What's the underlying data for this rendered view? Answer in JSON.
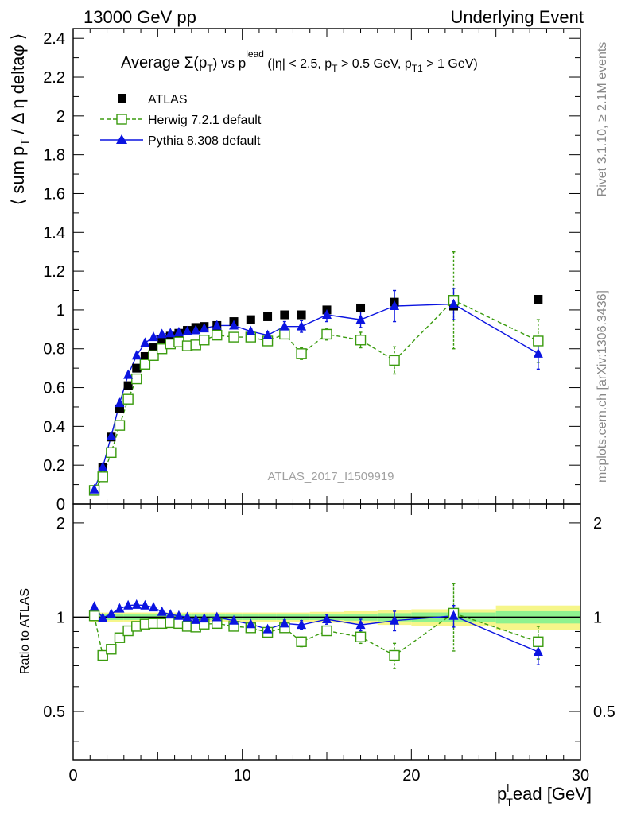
{
  "header": {
    "left": "13000 GeV pp",
    "right": "Underlying Event"
  },
  "side_labels": {
    "rivet": "Rivet 3.1.10, ≥ 2.1M events",
    "mcplots": "mcplots.cern.ch [arXiv:1306.3436]"
  },
  "watermark": "ATLAS_2017_I1509919",
  "chart_data": {
    "type": "scatter",
    "title": {
      "prefix": "Average ",
      "sigma": "Σ(p",
      "sub_T": "T",
      "mid": ") vs p",
      "sup_lead": "lead",
      "rest1": " (|η| < 2.5, p",
      "rest2": " > 0.5 GeV, p",
      "sub_T1": "T1",
      "rest3": " > 1 GeV)"
    },
    "ylabel": {
      "main": "⟨ sum p",
      "sub": "T",
      "rest": " / Δ η deltaφ ⟩"
    },
    "xlabel": {
      "p": "p",
      "sub": "T",
      "sup": "l",
      "rest": "ead [GeV]"
    },
    "ratio_ylabel": "Ratio to ATLAS",
    "xlim": [
      0,
      30
    ],
    "ylim": [
      0,
      2.45
    ],
    "ratio_ylim": [
      0.35,
      2.3
    ],
    "x_ticks": [
      0,
      10,
      20,
      30
    ],
    "y_ticks": [
      0,
      0.2,
      0.4,
      0.6,
      0.8,
      1,
      1.2,
      1.4,
      1.6,
      1.8,
      2,
      2.2,
      2.4
    ],
    "y_tick_labels": [
      "0",
      "0.2",
      "0.4",
      "0.6",
      "0.8",
      "1",
      "1.2",
      "1.4",
      "1.6",
      "1.8",
      "2",
      "2.2",
      "2.4"
    ],
    "ratio_ticks": [
      0.5,
      1,
      2
    ],
    "ratio_tick_labels": [
      "0.5",
      "1",
      "2"
    ],
    "legend_position": "top-left",
    "colors": {
      "atlas": "#000000",
      "herwig": "#3a9b0e",
      "pythia": "#0b14e0",
      "band_inner": "#8ff28f",
      "band_outer": "#f6f68a"
    },
    "series": [
      {
        "name": "ATLAS",
        "style": "data",
        "x": [
          1.25,
          1.75,
          2.25,
          2.75,
          3.25,
          3.75,
          4.25,
          4.75,
          5.25,
          5.75,
          6.25,
          6.75,
          7.25,
          7.75,
          8.5,
          9.5,
          10.5,
          11.5,
          12.5,
          13.5,
          15.0,
          17.0,
          19.0,
          22.5,
          27.5
        ],
        "y": [
          0.07,
          0.19,
          0.345,
          0.49,
          0.61,
          0.7,
          0.76,
          0.805,
          0.845,
          0.865,
          0.88,
          0.895,
          0.91,
          0.915,
          0.92,
          0.94,
          0.95,
          0.965,
          0.975,
          0.975,
          1.0,
          1.01,
          1.04,
          1.02,
          1.055
        ]
      },
      {
        "name": "Herwig 7.2.1 default",
        "style": "dashed-open-square",
        "x": [
          1.25,
          1.75,
          2.25,
          2.75,
          3.25,
          3.75,
          4.25,
          4.75,
          5.25,
          5.75,
          6.25,
          6.75,
          7.25,
          7.75,
          8.5,
          9.5,
          10.5,
          11.5,
          12.5,
          13.5,
          15.0,
          17.0,
          19.0,
          22.5,
          27.5
        ],
        "y": [
          0.07,
          0.14,
          0.265,
          0.405,
          0.54,
          0.645,
          0.72,
          0.765,
          0.8,
          0.825,
          0.835,
          0.815,
          0.82,
          0.845,
          0.87,
          0.86,
          0.86,
          0.84,
          0.875,
          0.775,
          0.875,
          0.845,
          0.74,
          1.05,
          0.84
        ],
        "err": [
          0,
          0,
          0,
          0,
          0,
          0,
          0,
          0,
          0,
          0,
          0,
          0,
          0,
          0,
          0.01,
          0.01,
          0.015,
          0.02,
          0.02,
          0.03,
          0.03,
          0.04,
          0.07,
          0.25,
          0.11
        ]
      },
      {
        "name": "Pythia 8.308 default",
        "style": "solid-triangle",
        "x": [
          1.25,
          1.75,
          2.25,
          2.75,
          3.25,
          3.75,
          4.25,
          4.75,
          5.25,
          5.75,
          6.25,
          6.75,
          7.25,
          7.75,
          8.5,
          9.5,
          10.5,
          11.5,
          12.5,
          13.5,
          15.0,
          17.0,
          19.0,
          22.5,
          27.5
        ],
        "y": [
          0.075,
          0.19,
          0.35,
          0.52,
          0.665,
          0.765,
          0.83,
          0.86,
          0.875,
          0.88,
          0.885,
          0.89,
          0.895,
          0.905,
          0.92,
          0.92,
          0.89,
          0.87,
          0.915,
          0.915,
          0.975,
          0.95,
          1.02,
          1.03,
          0.775
        ],
        "err": [
          0,
          0,
          0,
          0,
          0,
          0,
          0,
          0,
          0,
          0,
          0,
          0,
          0,
          0,
          0.01,
          0.01,
          0.015,
          0.02,
          0.025,
          0.03,
          0.035,
          0.04,
          0.08,
          0.08,
          0.08
        ]
      }
    ],
    "ratio_series": [
      {
        "name": "Herwig 7.2.1 default",
        "x": [
          1.25,
          1.75,
          2.25,
          2.75,
          3.25,
          3.75,
          4.25,
          4.75,
          5.25,
          5.75,
          6.25,
          6.75,
          7.25,
          7.75,
          8.5,
          9.5,
          10.5,
          11.5,
          12.5,
          13.5,
          15.0,
          17.0,
          19.0,
          22.5,
          27.5
        ],
        "y": [
          1.01,
          0.755,
          0.79,
          0.86,
          0.905,
          0.935,
          0.95,
          0.955,
          0.955,
          0.96,
          0.955,
          0.935,
          0.93,
          0.95,
          0.955,
          0.935,
          0.925,
          0.895,
          0.925,
          0.835,
          0.905,
          0.865,
          0.755,
          1.03,
          0.835
        ],
        "err": [
          0,
          0,
          0,
          0,
          0,
          0,
          0,
          0,
          0,
          0,
          0,
          0,
          0,
          0,
          0.01,
          0.01,
          0.015,
          0.02,
          0.02,
          0.03,
          0.03,
          0.04,
          0.07,
          0.25,
          0.1
        ]
      },
      {
        "name": "Pythia 8.308 default",
        "x": [
          1.25,
          1.75,
          2.25,
          2.75,
          3.25,
          3.75,
          4.25,
          4.75,
          5.25,
          5.75,
          6.25,
          6.75,
          7.25,
          7.75,
          8.5,
          9.5,
          10.5,
          11.5,
          12.5,
          13.5,
          15.0,
          17.0,
          19.0,
          22.5,
          27.5
        ],
        "y": [
          1.08,
          0.995,
          1.025,
          1.065,
          1.09,
          1.095,
          1.09,
          1.075,
          1.04,
          1.02,
          1.01,
          1.0,
          0.98,
          0.99,
          1.0,
          0.975,
          0.95,
          0.915,
          0.955,
          0.945,
          0.985,
          0.945,
          0.975,
          1.01,
          0.775
        ],
        "err": [
          0,
          0,
          0,
          0,
          0,
          0,
          0,
          0,
          0,
          0,
          0,
          0,
          0,
          0,
          0.01,
          0.01,
          0.015,
          0.02,
          0.025,
          0.03,
          0.035,
          0.04,
          0.07,
          0.08,
          0.07
        ]
      }
    ],
    "ratio_band": {
      "x_edges": [
        1,
        2,
        3,
        4,
        5,
        6,
        7,
        8,
        9,
        10,
        11,
        12,
        13,
        14,
        16,
        18,
        20,
        25,
        30
      ],
      "inner": [
        0.02,
        0.02,
        0.02,
        0.02,
        0.02,
        0.02,
        0.02,
        0.02,
        0.02,
        0.02,
        0.02,
        0.02,
        0.02,
        0.02,
        0.025,
        0.03,
        0.035,
        0.045
      ],
      "outer": [
        0.035,
        0.035,
        0.035,
        0.035,
        0.035,
        0.035,
        0.035,
        0.035,
        0.035,
        0.035,
        0.035,
        0.035,
        0.035,
        0.04,
        0.045,
        0.055,
        0.06,
        0.09
      ]
    }
  }
}
